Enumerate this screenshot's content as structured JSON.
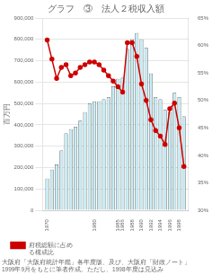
{
  "chart_data": {
    "type": "bar",
    "title": "グラフ　③　法人２税収入額",
    "ylabel": "百万円",
    "annotations": [
      "大阪府「大阪府統計年鑑」各年度版、及び、大阪府「財政ノート」",
      "1999年9月をもとに筆者作成。ただし、1998年度は見込み"
    ],
    "x": [
      1970,
      1971,
      1972,
      1973,
      1974,
      1975,
      1976,
      1977,
      1978,
      1979,
      1980,
      1981,
      1982,
      1983,
      1984,
      1985,
      1986,
      1987,
      1988,
      1989,
      1990,
      1991,
      1992,
      1993,
      1994,
      1995,
      1996,
      1997,
      1998,
      1999
    ],
    "series": [
      {
        "type": "bar",
        "color": "#c8ecf4",
        "values": [
          148000,
          190000,
          215000,
          280000,
          360000,
          380000,
          390000,
          420000,
          460000,
          500000,
          510000,
          510000,
          520000,
          530000,
          580000,
          615000,
          620000,
          755000,
          800000,
          830000,
          800000,
          760000,
          640000,
          530000,
          520000,
          470000,
          460000,
          550000,
          530000,
          440000
        ]
      },
      {
        "name": "府税総額に占め\nる構成比",
        "type": "line",
        "color": "#cc0000",
        "marker": "circle",
        "axis": "y2",
        "values": [
          61.0,
          57.5,
          54.0,
          56.0,
          56.5,
          54.5,
          55.0,
          56.0,
          56.5,
          57.0,
          57.0,
          56.5,
          55.5,
          54.5,
          53.5,
          52.5,
          51.5,
          60.5,
          60.5,
          58.0,
          53.0,
          50.0,
          46.5,
          44.5,
          43.5,
          42.0,
          48.5,
          49.5,
          45.0,
          38.0
        ]
      }
    ],
    "xlim": [
      1969,
      2000
    ],
    "xticks": [
      1970,
      1980,
      1985,
      1986,
      1988,
      1990,
      1992,
      1994,
      1996,
      1998
    ],
    "ylim": [
      0,
      900000
    ],
    "yticks": [
      0,
      {
        "value": 100000,
        "label": "100,000"
      },
      {
        "value": 200000,
        "label": "200,000"
      },
      {
        "value": 300000,
        "label": "300,000"
      },
      {
        "value": 400000,
        "label": "400,000"
      },
      {
        "value": 500000,
        "label": "500,000"
      },
      {
        "value": 600000,
        "label": "600,000"
      },
      {
        "value": 700000,
        "label": "700,000"
      },
      {
        "value": 800000,
        "label": "800,000"
      },
      {
        "value": 900000,
        "label": "900,000"
      }
    ],
    "y2lim": [
      30,
      65
    ],
    "y2ticks": [
      {
        "value": 30,
        "label": "30%"
      },
      {
        "value": 35,
        "label": "35%"
      },
      {
        "value": 40,
        "label": "40%"
      },
      {
        "value": 45,
        "label": "45%"
      },
      {
        "value": 50,
        "label": "50%"
      },
      {
        "value": 55,
        "label": "55%"
      },
      {
        "value": 60,
        "label": "60%"
      },
      {
        "value": 65,
        "label": "65%"
      }
    ],
    "grid": true,
    "legend": "lower left"
  }
}
